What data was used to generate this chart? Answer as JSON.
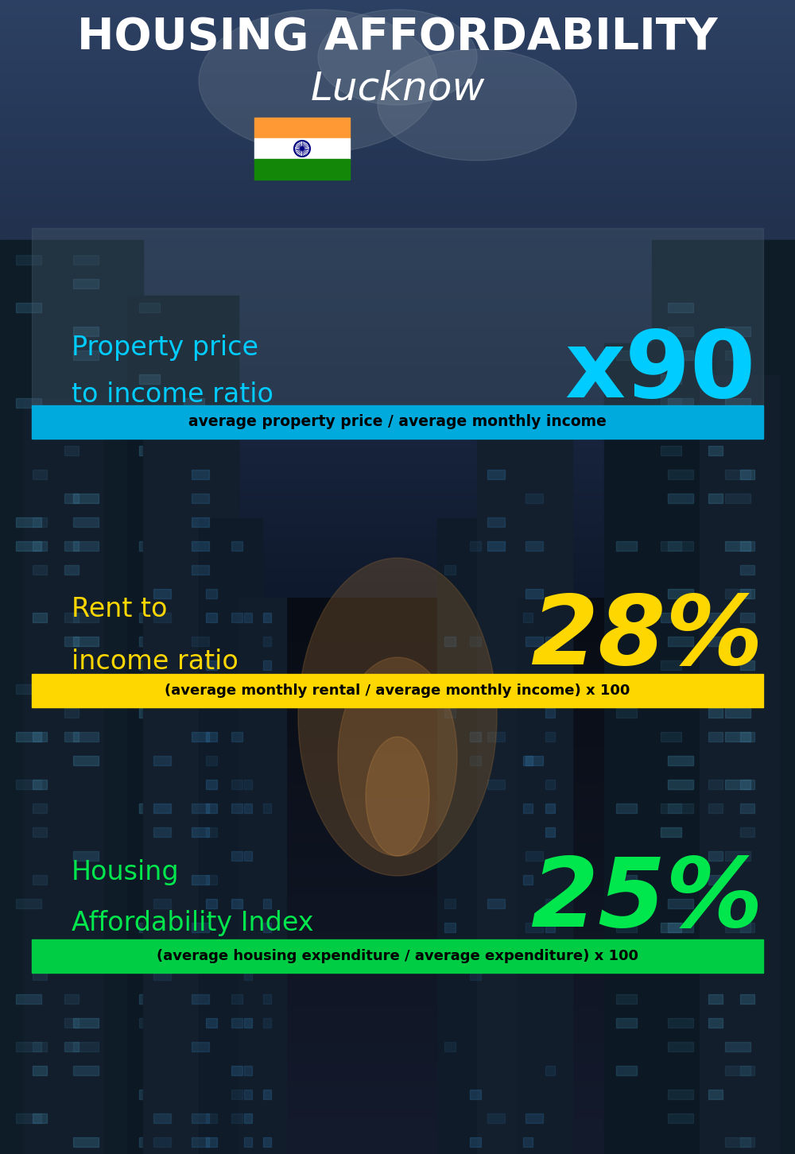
{
  "title_line1": "HOUSING AFFORDABILITY",
  "title_line2": "Lucknow",
  "sections": [
    {
      "label_line1": "Property price",
      "label_line2": "to income ratio",
      "value": "x90",
      "value_color": "#00ccff",
      "label_color": "#00ccff",
      "formula": "average property price / average monthly income",
      "formula_bg": "#00aadd",
      "formula_text_color": "#000000"
    },
    {
      "label_line1": "Rent to",
      "label_line2": "income ratio",
      "value": "28%",
      "value_color": "#FFD700",
      "label_color": "#FFD700",
      "formula": "(average monthly rental / average monthly income) x 100",
      "formula_bg": "#FFD700",
      "formula_text_color": "#000000"
    },
    {
      "label_line1": "Housing",
      "label_line2": "Affordability Index",
      "value": "25%",
      "value_color": "#00e64d",
      "label_color": "#00e64d",
      "formula": "(average housing expenditure / average expenditure) x 100",
      "formula_bg": "#00cc44",
      "formula_text_color": "#000000"
    }
  ],
  "bg_color": "#0d1b2a",
  "title_color": "#ffffff",
  "fig_width": 10.0,
  "fig_height": 14.52,
  "flag_saffron": "#FF9933",
  "flag_white": "#FFFFFF",
  "flag_green": "#138808",
  "flag_navy": "#000080"
}
